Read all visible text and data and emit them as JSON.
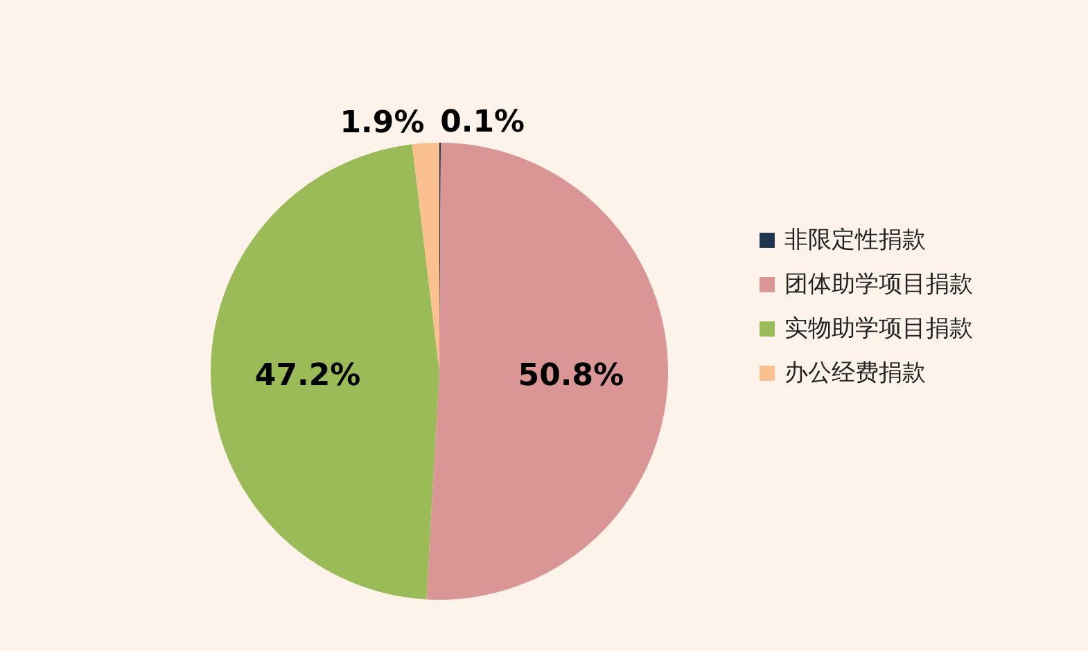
{
  "chart_data": {
    "type": "pie",
    "categories": [
      "非限定性捐款",
      "团体助学项目捐款",
      "实物助学项目捐款",
      "办公经费捐款"
    ],
    "values": [
      0.1,
      50.8,
      47.2,
      1.9
    ],
    "colors": [
      "#1f3550",
      "#d99694",
      "#9bbb59",
      "#fac090"
    ],
    "value_labels": [
      "0.1%",
      "50.8%",
      "47.2%",
      "1.9%"
    ],
    "legend": "right"
  }
}
